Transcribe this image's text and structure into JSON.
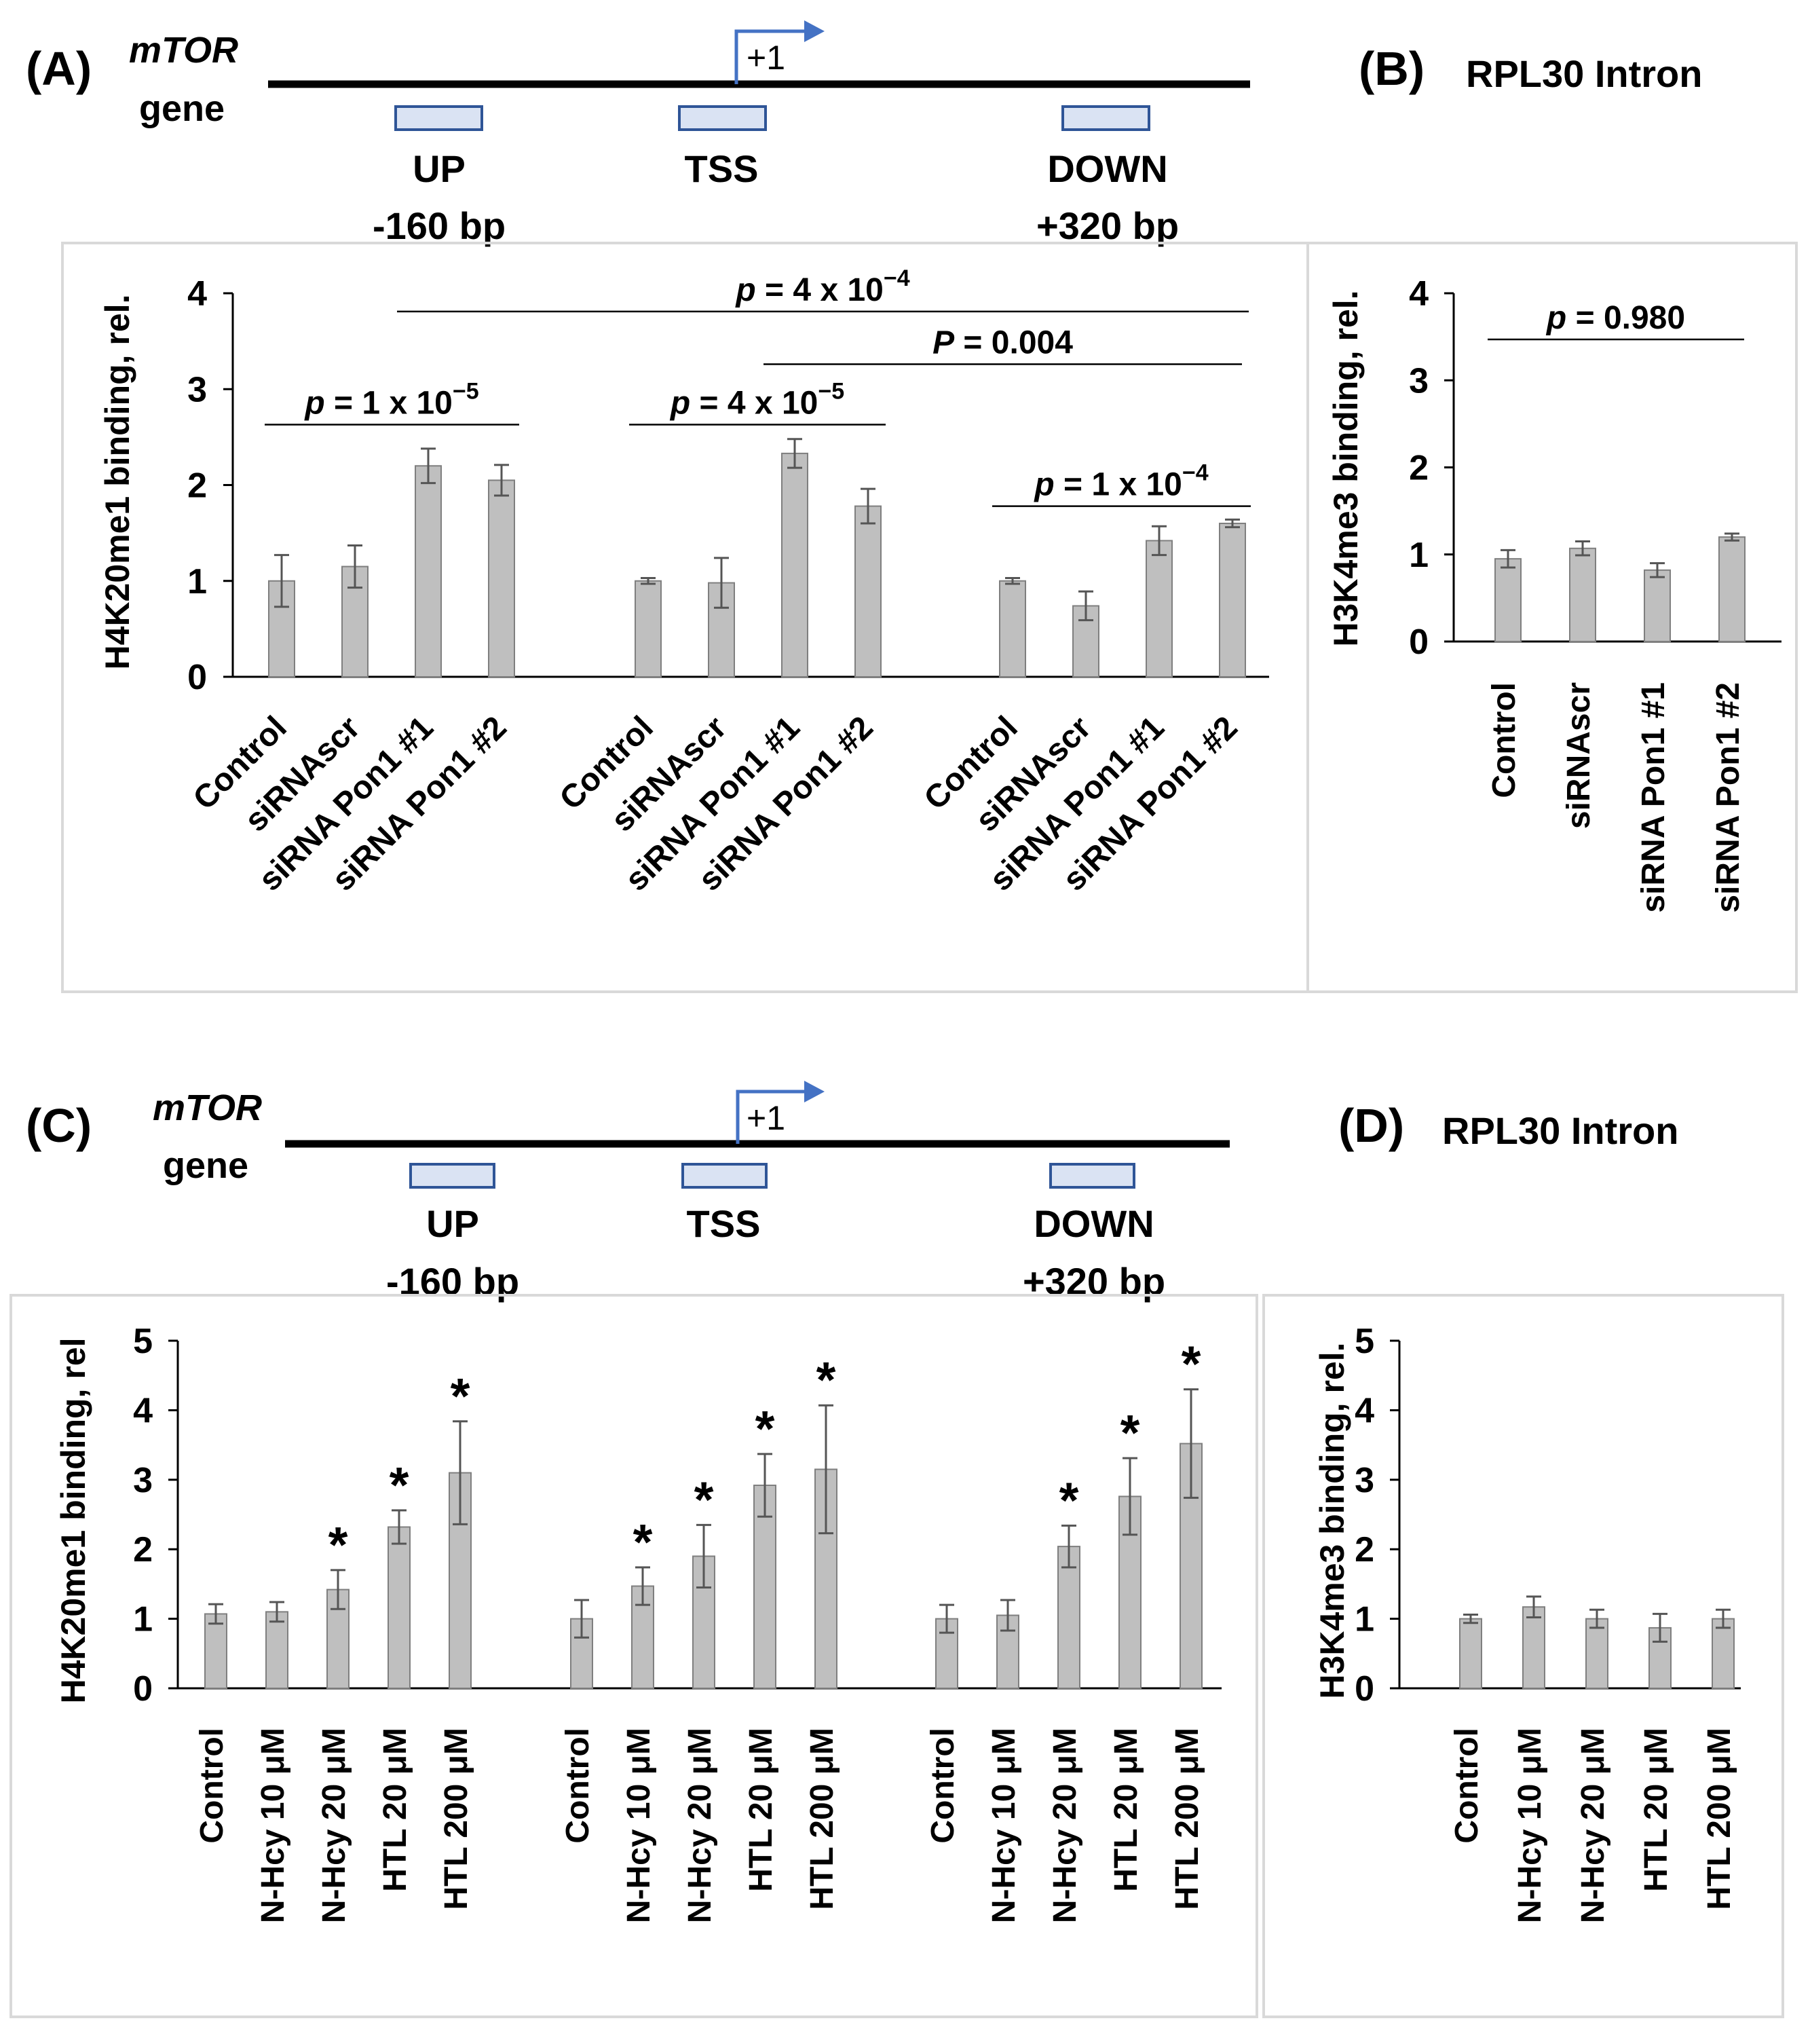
{
  "gene_map_top": {
    "panel": "(A)",
    "gene_italic": "mTOR",
    "gene_word": "gene",
    "tss_mark": "+1",
    "regions": [
      {
        "name": "UP",
        "offset": "-160 bp"
      },
      {
        "name": "TSS",
        "offset": ""
      },
      {
        "name": "DOWN",
        "offset": "+320 bp"
      }
    ]
  },
  "gene_map_bottom": {
    "panel": "(C)",
    "gene_italic": "mTOR",
    "gene_word": "gene",
    "tss_mark": "+1",
    "regions": [
      {
        "name": "UP",
        "offset": "-160 bp"
      },
      {
        "name": "TSS",
        "offset": ""
      },
      {
        "name": "DOWN",
        "offset": "+320 bp"
      }
    ]
  },
  "panel_B": {
    "panel": "(B)",
    "title": "RPL30 Intron"
  },
  "panel_D": {
    "panel": "(D)",
    "title": "RPL30 Intron"
  },
  "colors": {
    "bar": "#bfbfbf",
    "bar_edge": "#7f7f7f",
    "region_fill": "#dae3f3",
    "region_edge": "#2f5597",
    "arrow": "#4472c4",
    "frame": "#d9d9d9"
  },
  "chart_data": [
    {
      "id": "A",
      "type": "bar",
      "ylabel": "H4K20me1 binding, rel.",
      "ylim": [
        0,
        4
      ],
      "yticks": [
        0,
        1,
        2,
        3,
        4
      ],
      "categories": [
        "Control",
        "siRNAscr",
        "siRNA Pon1 #1",
        "siRNA Pon1 #2"
      ],
      "groups": [
        {
          "name": "UP",
          "values": [
            1.0,
            1.15,
            2.2,
            2.05
          ],
          "errors": [
            0.27,
            0.22,
            0.18,
            0.16
          ]
        },
        {
          "name": "TSS",
          "values": [
            1.0,
            0.98,
            2.33,
            1.78
          ],
          "errors": [
            0.03,
            0.26,
            0.15,
            0.18
          ]
        },
        {
          "name": "DOWN",
          "values": [
            1.0,
            0.74,
            1.42,
            1.6
          ],
          "errors": [
            0.03,
            0.15,
            0.15,
            0.04
          ]
        }
      ],
      "pvalues": [
        {
          "label": "p = 1 x 10",
          "exp": "−5",
          "from_group": 0,
          "to_group": 0,
          "level": 2.63
        },
        {
          "label": "p = 4 x 10",
          "exp": "−4",
          "from_group": 0,
          "to_group": 2,
          "level": 3.81
        },
        {
          "label": "P = 0.004",
          "exp": "",
          "from_group": 1,
          "to_group": 2,
          "level": 3.26
        },
        {
          "label": "p = 4 x 10",
          "exp": "−5",
          "from_group": 1,
          "to_group": 1,
          "level": 2.63
        },
        {
          "label": "p = 1 x 10",
          "exp": "−4",
          "from_group": 2,
          "to_group": 2,
          "level": 1.78
        }
      ]
    },
    {
      "id": "B",
      "type": "bar",
      "ylabel": "H3K4me3 binding, rel.",
      "ylim": [
        0,
        4
      ],
      "yticks": [
        0,
        1,
        2,
        3,
        4
      ],
      "categories": [
        "Control",
        "siRNAscr",
        "siRNA Pon1 #1",
        "siRNA Pon1 #2"
      ],
      "groups": [
        {
          "name": "",
          "values": [
            0.95,
            1.07,
            0.82,
            1.2
          ],
          "errors": [
            0.1,
            0.08,
            0.08,
            0.04
          ]
        }
      ],
      "pvalues": [
        {
          "label": "p = 0.980",
          "exp": "",
          "from_group": 0,
          "to_group": 0,
          "level": 3.47
        }
      ]
    },
    {
      "id": "C",
      "type": "bar",
      "ylabel": "H4K20me1 binding, rel",
      "ylim": [
        0,
        5
      ],
      "yticks": [
        0,
        1,
        2,
        3,
        4,
        5
      ],
      "categories": [
        "Control",
        "N-Hcy 10 μM",
        "N-Hcy 20 μM",
        "HTL 20 μM",
        "HTL 200 μM"
      ],
      "groups": [
        {
          "name": "UP",
          "values": [
            1.07,
            1.1,
            1.42,
            2.32,
            3.1
          ],
          "errors": [
            0.14,
            0.14,
            0.28,
            0.24,
            0.74
          ],
          "significant": [
            false,
            false,
            true,
            true,
            true
          ]
        },
        {
          "name": "TSS",
          "values": [
            1.0,
            1.47,
            1.9,
            2.92,
            3.15
          ],
          "errors": [
            0.27,
            0.27,
            0.45,
            0.45,
            0.92
          ],
          "significant": [
            false,
            true,
            true,
            true,
            true
          ]
        },
        {
          "name": "DOWN",
          "values": [
            1.0,
            1.05,
            2.04,
            2.76,
            3.52
          ],
          "errors": [
            0.2,
            0.22,
            0.3,
            0.55,
            0.78
          ],
          "significant": [
            false,
            false,
            true,
            true,
            true
          ]
        }
      ],
      "sig_mark": "*",
      "pvalues": []
    },
    {
      "id": "D",
      "type": "bar",
      "ylabel": "H3K4me3 binding, rel.",
      "ylim": [
        0,
        5
      ],
      "yticks": [
        0,
        1,
        2,
        3,
        4,
        5
      ],
      "categories": [
        "Control",
        "N-Hcy 10 μM",
        "N-Hcy 20 μM",
        "HTL 20 μM",
        "HTL 200 μM"
      ],
      "groups": [
        {
          "name": "",
          "values": [
            1.0,
            1.17,
            1.0,
            0.87,
            1.0
          ],
          "errors": [
            0.06,
            0.15,
            0.13,
            0.2,
            0.13
          ]
        }
      ],
      "pvalues": []
    }
  ]
}
